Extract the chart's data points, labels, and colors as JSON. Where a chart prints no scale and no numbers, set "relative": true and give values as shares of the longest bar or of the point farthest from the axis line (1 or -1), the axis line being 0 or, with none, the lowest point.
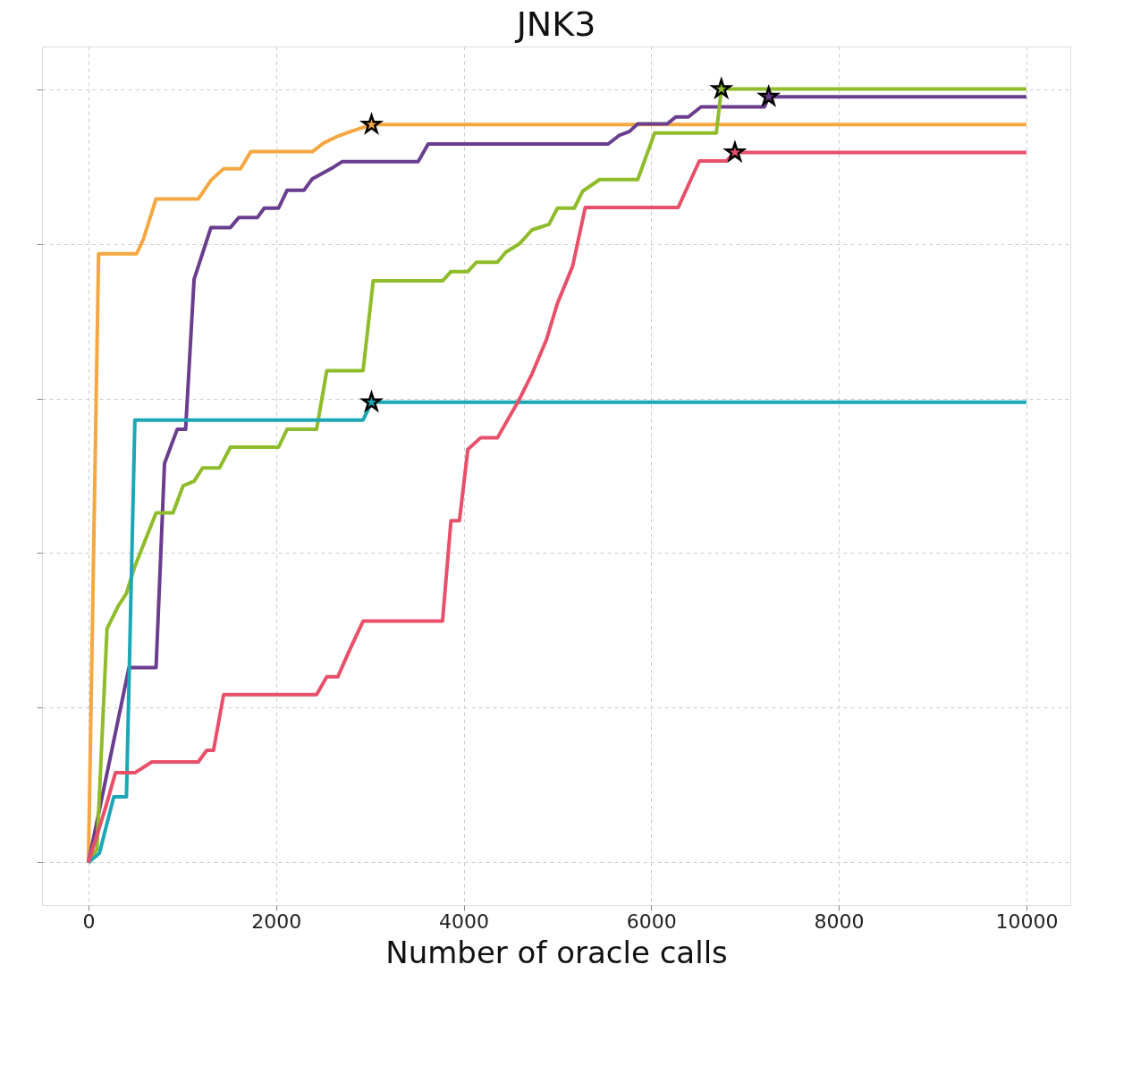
{
  "chart_data": {
    "type": "line",
    "title": "JNK3",
    "xlabel": "Number of oracle calls",
    "relative": true,
    "xlim": [
      -495,
      10468
    ],
    "xticks": [
      0,
      2000,
      4000,
      6000,
      8000,
      10000
    ],
    "grid": true,
    "tick_labels": "x",
    "marker": "none",
    "line_style": "solid",
    "series": [
      {
        "color": "#f5a742",
        "x": [
          0,
          108,
          514,
          586,
          721,
          1171,
          1306,
          1441,
          1622,
          1730,
          2387,
          2505,
          2658,
          2793,
          3018,
          10000
        ],
        "values": [
          0,
          0.787,
          0.787,
          0.806,
          0.858,
          0.858,
          0.882,
          0.897,
          0.897,
          0.919,
          0.919,
          0.93,
          0.939,
          0.945,
          0.954,
          0.954
        ]
      },
      {
        "color": "#6a3d8f",
        "x": [
          0,
          432,
          721,
          811,
          946,
          1036,
          1126,
          1306,
          1514,
          1604,
          1802,
          1874,
          2027,
          2117,
          2297,
          2387,
          2613,
          2703,
          3514,
          3622,
          5541,
          5658,
          5766,
          5856,
          6171,
          6261,
          6396,
          6531,
          7207,
          7252,
          10000
        ],
        "values": [
          0,
          0.252,
          0.252,
          0.516,
          0.56,
          0.56,
          0.754,
          0.821,
          0.821,
          0.834,
          0.834,
          0.846,
          0.846,
          0.869,
          0.869,
          0.884,
          0.899,
          0.906,
          0.906,
          0.929,
          0.929,
          0.94,
          0.945,
          0.955,
          0.955,
          0.964,
          0.964,
          0.977,
          0.977,
          0.99,
          0.99
        ]
      },
      {
        "color": "#8fbc2a",
        "x": [
          0,
          90,
          198,
          315,
          405,
          495,
          721,
          901,
          1009,
          1126,
          1216,
          1396,
          1514,
          2027,
          2117,
          2432,
          2541,
          2928,
          3036,
          3775,
          3865,
          4045,
          4135,
          4360,
          4450,
          4595,
          4730,
          4910,
          5000,
          5180,
          5270,
          5450,
          5856,
          6036,
          6694,
          6748,
          10000
        ],
        "values": [
          0,
          0.017,
          0.302,
          0.331,
          0.348,
          0.383,
          0.452,
          0.452,
          0.487,
          0.493,
          0.51,
          0.51,
          0.537,
          0.537,
          0.56,
          0.56,
          0.636,
          0.636,
          0.752,
          0.752,
          0.764,
          0.764,
          0.776,
          0.776,
          0.789,
          0.8,
          0.818,
          0.825,
          0.846,
          0.846,
          0.868,
          0.883,
          0.883,
          0.943,
          0.943,
          1.0,
          1.0
        ]
      },
      {
        "color": "#1ba7b5",
        "x": [
          0,
          117,
          270,
          405,
          495,
          2928,
          3018,
          10000
        ],
        "values": [
          0,
          0.012,
          0.085,
          0.085,
          0.572,
          0.572,
          0.595,
          0.595
        ]
      },
      {
        "color": "#e8506a",
        "x": [
          0,
          180,
          288,
          495,
          676,
          1171,
          1261,
          1333,
          1441,
          2432,
          2541,
          2658,
          2793,
          2928,
          3775,
          3865,
          3955,
          4045,
          4180,
          4360,
          4586,
          4730,
          4883,
          5000,
          5162,
          5297,
          6288,
          6513,
          6802,
          6892,
          10000
        ],
        "values": [
          0,
          0.07,
          0.116,
          0.116,
          0.13,
          0.13,
          0.145,
          0.145,
          0.217,
          0.217,
          0.24,
          0.24,
          0.277,
          0.312,
          0.312,
          0.442,
          0.442,
          0.534,
          0.549,
          0.549,
          0.597,
          0.632,
          0.676,
          0.723,
          0.771,
          0.847,
          0.847,
          0.907,
          0.907,
          0.918,
          0.918
        ]
      },
      {
        "type": "scatter",
        "marker": "star",
        "x": [
          3018,
          3018,
          6748,
          7252,
          6892
        ],
        "values": [
          0.954,
          0.595,
          1.0,
          0.99,
          0.918
        ],
        "colors": [
          "#f5a742",
          "#1ba7b5",
          "#8fbc2a",
          "#6a3d8f",
          "#e8506a"
        ]
      }
    ]
  }
}
